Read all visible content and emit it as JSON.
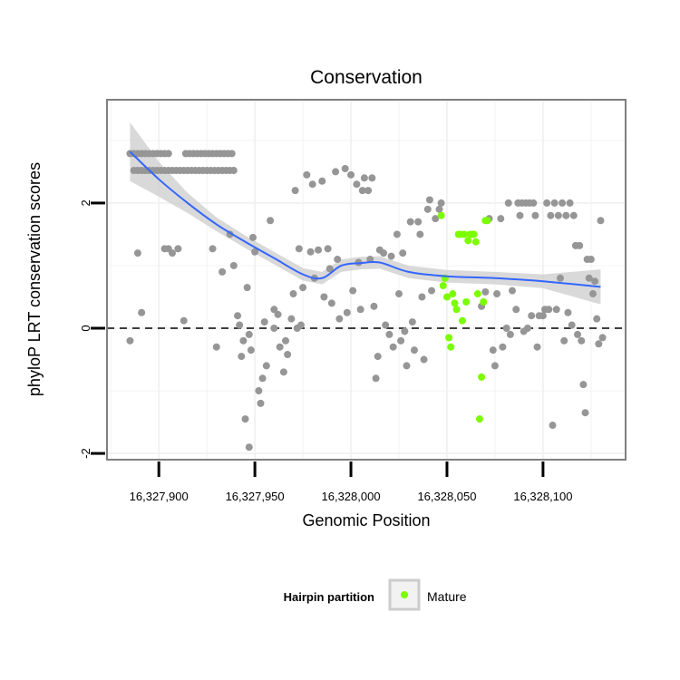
{
  "chart_data": {
    "type": "scatter",
    "title": "Conservation",
    "xlabel": "Genomic Position",
    "ylabel": "phyloP LRT conservation scores",
    "xlim": [
      16327873,
      16328143
    ],
    "ylim": [
      -2.1,
      3.65
    ],
    "x_ticks": [
      {
        "value": 16327900,
        "label": "16,327,900"
      },
      {
        "value": 16327950,
        "label": "16,327,950"
      },
      {
        "value": 16328000,
        "label": "16,328,000"
      },
      {
        "value": 16328050,
        "label": "16,328,050"
      },
      {
        "value": 16328100,
        "label": "16,328,100"
      }
    ],
    "y_ticks": [
      {
        "value": -2,
        "label": "-2"
      },
      {
        "value": 0,
        "label": "0"
      },
      {
        "value": 2,
        "label": "2"
      }
    ],
    "grid": true,
    "reference_line": {
      "y": 0,
      "style": "dashed"
    },
    "legend": {
      "title": "Hairpin partition",
      "entries": [
        {
          "label": "Mature",
          "color": "#7cfc00"
        }
      ],
      "position": "bottom"
    },
    "colors": {
      "other": "#969696",
      "mature": "#7cfc00",
      "smooth": "#3366ff",
      "ribbon": "#cccccc"
    },
    "series": [
      {
        "name": "",
        "color": "#969696",
        "points": [
          [
            16327885,
            2.79
          ],
          [
            16327887,
            2.79
          ],
          [
            16327889,
            2.79
          ],
          [
            16327891,
            2.79
          ],
          [
            16327893,
            2.79
          ],
          [
            16327895,
            2.79
          ],
          [
            16327897,
            2.79
          ],
          [
            16327899,
            2.79
          ],
          [
            16327901,
            2.79
          ],
          [
            16327903,
            2.79
          ],
          [
            16327905,
            2.79
          ],
          [
            16327887,
            2.52
          ],
          [
            16327889,
            2.52
          ],
          [
            16327891,
            2.52
          ],
          [
            16327893,
            2.52
          ],
          [
            16327895,
            2.52
          ],
          [
            16327897,
            2.52
          ],
          [
            16327899,
            2.52
          ],
          [
            16327901,
            2.52
          ],
          [
            16327903,
            2.52
          ],
          [
            16327905,
            2.52
          ],
          [
            16327907,
            2.52
          ],
          [
            16327909,
            2.52
          ],
          [
            16327911,
            2.52
          ],
          [
            16327913,
            2.52
          ],
          [
            16327915,
            2.52
          ],
          [
            16327917,
            2.52
          ],
          [
            16327919,
            2.52
          ],
          [
            16327921,
            2.52
          ],
          [
            16327923,
            2.52
          ],
          [
            16327925,
            2.52
          ],
          [
            16327927,
            2.52
          ],
          [
            16327929,
            2.52
          ],
          [
            16327931,
            2.52
          ],
          [
            16327933,
            2.52
          ],
          [
            16327935,
            2.52
          ],
          [
            16327937,
            2.52
          ],
          [
            16327939,
            2.52
          ],
          [
            16327914,
            2.79
          ],
          [
            16327916,
            2.79
          ],
          [
            16327918,
            2.79
          ],
          [
            16327920,
            2.79
          ],
          [
            16327922,
            2.79
          ],
          [
            16327924,
            2.79
          ],
          [
            16327926,
            2.79
          ],
          [
            16327928,
            2.79
          ],
          [
            16327930,
            2.79
          ],
          [
            16327932,
            2.79
          ],
          [
            16327934,
            2.79
          ],
          [
            16327936,
            2.79
          ],
          [
            16327938,
            2.79
          ],
          [
            16327889,
            1.2
          ],
          [
            16327891,
            0.25
          ],
          [
            16327885,
            -0.2
          ],
          [
            16327903,
            1.27
          ],
          [
            16327905,
            1.27
          ],
          [
            16327907,
            1.2
          ],
          [
            16327910,
            1.27
          ],
          [
            16327913,
            0.12
          ],
          [
            16327928,
            1.27
          ],
          [
            16327930,
            -0.3
          ],
          [
            16327933,
            0.9
          ],
          [
            16327937,
            1.5
          ],
          [
            16327939,
            1.0
          ],
          [
            16327941,
            0.2
          ],
          [
            16327942,
            0.05
          ],
          [
            16327944,
            -0.2
          ],
          [
            16327943,
            -0.45
          ],
          [
            16327946,
            0.65
          ],
          [
            16327949,
            1.45
          ],
          [
            16327947,
            -0.1
          ],
          [
            16327948,
            -0.35
          ],
          [
            16327950,
            1.22
          ],
          [
            16327952,
            -1.0
          ],
          [
            16327953,
            -1.2
          ],
          [
            16327954,
            -0.8
          ],
          [
            16327955,
            0.1
          ],
          [
            16327956,
            -0.6
          ],
          [
            16327945,
            -1.45
          ],
          [
            16327947,
            -1.9
          ],
          [
            16327958,
            1.72
          ],
          [
            16327960,
            0.0
          ],
          [
            16327960,
            0.3
          ],
          [
            16327962,
            0.22
          ],
          [
            16327963,
            -0.3
          ],
          [
            16327965,
            -0.7
          ],
          [
            16327966,
            -0.2
          ],
          [
            16327967,
            -0.42
          ],
          [
            16327969,
            0.15
          ],
          [
            16327970,
            0.55
          ],
          [
            16327972,
            0.0
          ],
          [
            16327974,
            0.05
          ],
          [
            16327971,
            2.2
          ],
          [
            16327973,
            1.27
          ],
          [
            16327975,
            0.65
          ],
          [
            16327977,
            2.45
          ],
          [
            16327979,
            1.22
          ],
          [
            16327980,
            2.3
          ],
          [
            16327981,
            0.8
          ],
          [
            16327983,
            1.25
          ],
          [
            16327985,
            2.35
          ],
          [
            16327986,
            0.5
          ],
          [
            16327988,
            1.27
          ],
          [
            16327989,
            0.95
          ],
          [
            16327990,
            0.4
          ],
          [
            16327992,
            2.5
          ],
          [
            16327993,
            1.1
          ],
          [
            16327994,
            0.15
          ],
          [
            16327997,
            2.55
          ],
          [
            16327998,
            0.25
          ],
          [
            16328000,
            2.45
          ],
          [
            16328001,
            0.6
          ],
          [
            16328003,
            2.3
          ],
          [
            16328004,
            1.05
          ],
          [
            16328005,
            0.3
          ],
          [
            16328006,
            2.2
          ],
          [
            16328007,
            2.4
          ],
          [
            16328009,
            2.2
          ],
          [
            16328010,
            1.1
          ],
          [
            16328011,
            2.4
          ],
          [
            16328012,
            0.35
          ],
          [
            16328013,
            -0.8
          ],
          [
            16328014,
            -0.45
          ],
          [
            16328015,
            1.25
          ],
          [
            16328017,
            1.2
          ],
          [
            16328018,
            0.05
          ],
          [
            16328020,
            -0.1
          ],
          [
            16328021,
            1.15
          ],
          [
            16328022,
            -0.3
          ],
          [
            16328024,
            1.5
          ],
          [
            16328025,
            0.55
          ],
          [
            16328026,
            -0.2
          ],
          [
            16328027,
            1.2
          ],
          [
            16328028,
            -0.05
          ],
          [
            16328029,
            -0.6
          ],
          [
            16328031,
            1.7
          ],
          [
            16328032,
            0.1
          ],
          [
            16328033,
            -0.35
          ],
          [
            16328035,
            1.7
          ],
          [
            16328036,
            1.5
          ],
          [
            16328037,
            0.5
          ],
          [
            16328038,
            -0.5
          ],
          [
            16328040,
            1.9
          ],
          [
            16328041,
            2.05
          ],
          [
            16328042,
            0.6
          ],
          [
            16328044,
            1.75
          ],
          [
            16328046,
            1.9
          ],
          [
            16328047,
            2.0
          ],
          [
            16328068,
            0.35
          ],
          [
            16328070,
            0.58
          ],
          [
            16328072,
            1.75
          ],
          [
            16328074,
            -0.35
          ],
          [
            16328075,
            -0.6
          ],
          [
            16328076,
            0.55
          ],
          [
            16328078,
            1.75
          ],
          [
            16328079,
            -0.3
          ],
          [
            16328081,
            0.0
          ],
          [
            16328082,
            2.0
          ],
          [
            16328083,
            -0.1
          ],
          [
            16328084,
            0.6
          ],
          [
            16328086,
            0.3
          ],
          [
            16328087,
            2.0
          ],
          [
            16328089,
            2.0
          ],
          [
            16328091,
            2.0
          ],
          [
            16328093,
            2.0
          ],
          [
            16328095,
            2.0
          ],
          [
            16328088,
            1.8
          ],
          [
            16328090,
            -0.05
          ],
          [
            16328092,
            0.0
          ],
          [
            16328094,
            0.2
          ],
          [
            16328096,
            1.8
          ],
          [
            16328098,
            0.2
          ],
          [
            16328100,
            0.2
          ],
          [
            16328097,
            -0.3
          ],
          [
            16328102,
            2.0
          ],
          [
            16328104,
            1.8
          ],
          [
            16328106,
            2.0
          ],
          [
            16328108,
            1.8
          ],
          [
            16328110,
            2.0
          ],
          [
            16328112,
            1.8
          ],
          [
            16328114,
            2.0
          ],
          [
            16328116,
            1.8
          ],
          [
            16328101,
            0.3
          ],
          [
            16328103,
            0.3
          ],
          [
            16328105,
            -1.55
          ],
          [
            16328107,
            0.3
          ],
          [
            16328109,
            0.8
          ],
          [
            16328111,
            -0.2
          ],
          [
            16328113,
            0.25
          ],
          [
            16328115,
            0.05
          ],
          [
            16328117,
            1.32
          ],
          [
            16328119,
            1.32
          ],
          [
            16328118,
            -0.1
          ],
          [
            16328120,
            -0.2
          ],
          [
            16328121,
            -0.9
          ],
          [
            16328122,
            -1.35
          ],
          [
            16328123,
            1.1
          ],
          [
            16328125,
            1.1
          ],
          [
            16328127,
            0.75
          ],
          [
            16328128,
            0.15
          ],
          [
            16328129,
            -0.25
          ],
          [
            16328130,
            1.72
          ],
          [
            16328131,
            -0.15
          ],
          [
            16328126,
            0.55
          ],
          [
            16328124,
            0.8
          ]
        ]
      },
      {
        "name": "Mature",
        "color": "#7cfc00",
        "points": [
          [
            16328047,
            1.8
          ],
          [
            16328048,
            0.68
          ],
          [
            16328049,
            0.8
          ],
          [
            16328050,
            0.5
          ],
          [
            16328051,
            -0.15
          ],
          [
            16328052,
            -0.3
          ],
          [
            16328053,
            0.55
          ],
          [
            16328054,
            0.4
          ],
          [
            16328055,
            0.3
          ],
          [
            16328056,
            1.5
          ],
          [
            16328057,
            1.5
          ],
          [
            16328058,
            0.12
          ],
          [
            16328059,
            1.5
          ],
          [
            16328060,
            0.42
          ],
          [
            16328061,
            1.4
          ],
          [
            16328062,
            1.5
          ],
          [
            16328063,
            1.5
          ],
          [
            16328064,
            1.5
          ],
          [
            16328065,
            1.38
          ],
          [
            16328066,
            0.55
          ],
          [
            16328067,
            -1.45
          ],
          [
            16328068,
            -0.78
          ],
          [
            16328069,
            0.42
          ],
          [
            16328070,
            1.72
          ],
          [
            16328071,
            1.72
          ]
        ]
      }
    ],
    "smooth": {
      "points": [
        [
          16327885,
          2.82
        ],
        [
          16327900,
          2.38
        ],
        [
          16327915,
          2.0
        ],
        [
          16327930,
          1.66
        ],
        [
          16327945,
          1.38
        ],
        [
          16327960,
          1.12
        ],
        [
          16327975,
          0.86
        ],
        [
          16327985,
          0.8
        ],
        [
          16327995,
          1.0
        ],
        [
          16328005,
          1.04
        ],
        [
          16328015,
          1.05
        ],
        [
          16328030,
          0.9
        ],
        [
          16328050,
          0.83
        ],
        [
          16328075,
          0.8
        ],
        [
          16328100,
          0.75
        ],
        [
          16328130,
          0.66
        ]
      ],
      "ribbon_halfwidth": [
        0.47,
        0.28,
        0.16,
        0.11,
        0.1,
        0.1,
        0.1,
        0.1,
        0.1,
        0.1,
        0.1,
        0.1,
        0.1,
        0.1,
        0.11,
        0.28
      ]
    }
  }
}
